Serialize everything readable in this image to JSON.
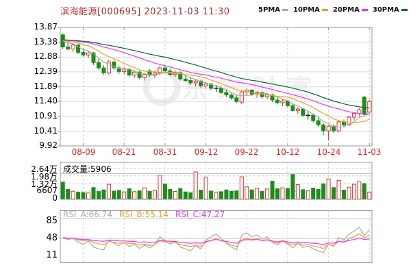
{
  "header": {
    "title": "滨海能源[000695] 2023-11-03 11:30",
    "legend": [
      {
        "label": "5PMA",
        "color": "#aaaaaa"
      },
      {
        "label": "10PMA",
        "color": "#f0a11a"
      },
      {
        "label": "20PMA",
        "color": "#f830f8"
      },
      {
        "label": "30PMA",
        "color": "#006a35"
      }
    ]
  },
  "main": {
    "y_labels": [
      "13.87",
      "13.38",
      "12.88",
      "12.39",
      "11.89",
      "11.40",
      "10.91",
      "10.41",
      "9.92"
    ]
  },
  "x_labels": [
    "08-09",
    "08-21",
    "08-31",
    "09-12",
    "09-22",
    "10-12",
    "10-24",
    "11-03"
  ],
  "volume": {
    "header": "成交量:5906",
    "y_labels": [
      "2.64万",
      "1.98万",
      "1.32万",
      "6607",
      "0"
    ]
  },
  "rsi": {
    "labels": [
      {
        "text": "RSI_A:66.74",
        "color": "#aaaaaa"
      },
      {
        "text": "RSI_B:55.14",
        "color": "#f0a11a"
      },
      {
        "text": "RSI_C:47.27",
        "color": "#f830f8"
      }
    ],
    "y_labels": [
      "85",
      "48",
      "11"
    ]
  },
  "watermark": {
    "text": "东方财富"
  },
  "chart_data": [
    {
      "type": "candlestick",
      "title": "滨海能源[000695] 2023-11-03 11:30",
      "ylim": [
        9.92,
        13.87
      ],
      "y_ticks": [
        13.87,
        13.38,
        12.88,
        12.39,
        11.89,
        11.4,
        10.91,
        10.41,
        9.92
      ],
      "x_tick_indices": [
        4,
        12,
        20,
        28,
        36,
        44,
        52,
        60
      ],
      "x_tick_labels": [
        "08-09",
        "08-21",
        "08-31",
        "09-12",
        "09-22",
        "10-12",
        "10-24",
        "11-03"
      ],
      "dates": [
        "08-03",
        "08-04",
        "08-07",
        "08-08",
        "08-09",
        "08-10",
        "08-11",
        "08-14",
        "08-15",
        "08-16",
        "08-17",
        "08-18",
        "08-21",
        "08-22",
        "08-23",
        "08-24",
        "08-25",
        "08-28",
        "08-29",
        "08-30",
        "08-31",
        "09-01",
        "09-04",
        "09-05",
        "09-06",
        "09-07",
        "09-08",
        "09-11",
        "09-12",
        "09-13",
        "09-14",
        "09-15",
        "09-18",
        "09-19",
        "09-20",
        "09-21",
        "09-22",
        "09-25",
        "09-26",
        "09-27",
        "09-28",
        "10-09",
        "10-10",
        "10-11",
        "10-12",
        "10-13",
        "10-16",
        "10-17",
        "10-18",
        "10-19",
        "10-20",
        "10-23",
        "10-24",
        "10-25",
        "10-26",
        "10-27",
        "10-30",
        "10-31",
        "11-01",
        "11-02",
        "11-03"
      ],
      "ohlc": [
        [
          13.62,
          13.68,
          13.15,
          13.22
        ],
        [
          13.22,
          13.4,
          13.1,
          13.15
        ],
        [
          13.15,
          13.35,
          13.05,
          13.28
        ],
        [
          13.28,
          13.32,
          12.98,
          13.04
        ],
        [
          13.04,
          13.18,
          12.9,
          12.95
        ],
        [
          12.95,
          13.1,
          12.85,
          13.02
        ],
        [
          13.02,
          13.06,
          12.62,
          12.7
        ],
        [
          12.7,
          12.82,
          12.45,
          12.52
        ],
        [
          12.52,
          12.62,
          12.28,
          12.35
        ],
        [
          12.35,
          12.8,
          12.3,
          12.72
        ],
        [
          12.72,
          12.78,
          12.45,
          12.52
        ],
        [
          12.52,
          12.6,
          12.32,
          12.4
        ],
        [
          12.4,
          12.55,
          12.3,
          12.48
        ],
        [
          12.48,
          12.52,
          12.22,
          12.28
        ],
        [
          12.28,
          12.45,
          12.18,
          12.38
        ],
        [
          12.38,
          12.42,
          12.15,
          12.2
        ],
        [
          12.2,
          12.35,
          12.1,
          12.3
        ],
        [
          12.42,
          12.48,
          12.22,
          12.28
        ],
        [
          12.28,
          12.4,
          12.18,
          12.35
        ],
        [
          12.35,
          12.58,
          12.28,
          12.52
        ],
        [
          12.52,
          12.62,
          12.35,
          12.42
        ],
        [
          12.42,
          12.5,
          12.25,
          12.3
        ],
        [
          12.3,
          12.42,
          12.2,
          12.36
        ],
        [
          12.36,
          12.4,
          12.1,
          12.15
        ],
        [
          12.15,
          12.28,
          12.05,
          12.1
        ],
        [
          12.1,
          12.22,
          11.95,
          12.02
        ],
        [
          12.02,
          12.15,
          11.9,
          12.08
        ],
        [
          12.08,
          12.12,
          11.85,
          11.92
        ],
        [
          11.92,
          12.05,
          11.82,
          11.98
        ],
        [
          11.98,
          12.02,
          11.78,
          11.84
        ],
        [
          11.84,
          11.95,
          11.72,
          11.84
        ],
        [
          11.84,
          11.9,
          11.65,
          11.7
        ],
        [
          11.7,
          11.8,
          11.55,
          11.62
        ],
        [
          11.62,
          11.72,
          11.45,
          11.52
        ],
        [
          11.52,
          11.6,
          11.35,
          11.4
        ],
        [
          11.38,
          11.78,
          11.32,
          11.72
        ],
        [
          11.72,
          11.85,
          11.6,
          11.78
        ],
        [
          11.78,
          11.82,
          11.58,
          11.65
        ],
        [
          11.65,
          11.75,
          11.52,
          11.7
        ],
        [
          11.7,
          11.74,
          11.5,
          11.56
        ],
        [
          11.56,
          11.68,
          11.48,
          11.62
        ],
        [
          11.62,
          11.65,
          11.38,
          11.45
        ],
        [
          11.45,
          11.55,
          11.3,
          11.36
        ],
        [
          11.36,
          11.48,
          11.25,
          11.42
        ],
        [
          11.42,
          11.45,
          11.2,
          11.26
        ],
        [
          11.26,
          11.35,
          11.05,
          11.1
        ],
        [
          11.1,
          11.22,
          10.98,
          11.15
        ],
        [
          11.15,
          11.18,
          10.88,
          10.94
        ],
        [
          10.94,
          11.05,
          10.8,
          10.94
        ],
        [
          10.94,
          11.0,
          10.7,
          10.76
        ],
        [
          10.76,
          10.88,
          10.55,
          10.62
        ],
        [
          10.62,
          10.68,
          10.28,
          10.42
        ],
        [
          10.42,
          10.62,
          10.1,
          10.58
        ],
        [
          10.58,
          10.64,
          10.35,
          10.42
        ],
        [
          10.42,
          10.78,
          10.38,
          10.72
        ],
        [
          10.72,
          10.8,
          10.55,
          10.62
        ],
        [
          10.62,
          10.92,
          10.58,
          10.88
        ],
        [
          10.88,
          11.05,
          10.78,
          11.0
        ],
        [
          11.0,
          11.18,
          10.9,
          11.12
        ],
        [
          11.55,
          11.58,
          10.92,
          10.98
        ],
        [
          11.05,
          11.45,
          11.0,
          11.4
        ]
      ],
      "ma_seed": [
        13.42,
        13.48,
        13.45,
        13.5,
        13.46,
        13.52,
        13.48,
        13.44,
        13.5,
        13.46,
        13.42,
        13.48,
        13.45,
        13.5,
        13.46,
        13.42,
        13.48,
        13.44,
        13.5,
        13.46,
        13.42,
        13.48,
        13.45,
        13.5,
        13.46,
        13.42,
        13.48,
        13.44,
        13.5,
        13.46
      ],
      "ma_periods": [
        5,
        10,
        20,
        30
      ],
      "colors": {
        "up": "#e02a2a",
        "down": "#1d8c1d",
        "doji": "#000000",
        "ma5": "#aaaaaa",
        "ma10": "#f0a11a",
        "ma20": "#f830f8",
        "ma30": "#006a35",
        "grid": "#dadada",
        "grid_dash": "#cfcfcf",
        "border": "#999999",
        "date_label": "#e62222"
      }
    },
    {
      "type": "bar",
      "name": "成交量",
      "current": 5906,
      "ylim": [
        0,
        26428
      ],
      "y_ticks": [
        26428,
        19821,
        13214,
        6607,
        0
      ],
      "values": [
        14500,
        8200,
        6600,
        5800,
        5600,
        5200,
        9800,
        6400,
        7800,
        12600,
        6800,
        7400,
        6000,
        8800,
        6200,
        7000,
        9600,
        6600,
        7200,
        20400,
        12800,
        8200,
        6400,
        9000,
        6000,
        5400,
        23200,
        7600,
        18800,
        6800,
        5600,
        6200,
        7800,
        6600,
        7000,
        19000,
        10400,
        7800,
        9200,
        6400,
        8600,
        15200,
        8800,
        9600,
        9000,
        21000,
        12400,
        8000,
        7000,
        9400,
        8200,
        13000,
        17200,
        9800,
        15800,
        7600,
        10200,
        12600,
        14800,
        13200,
        5906
      ]
    },
    {
      "type": "line",
      "name": "RSI",
      "ylim": [
        11,
        85
      ],
      "y_ticks": [
        85,
        48,
        11
      ],
      "series": [
        {
          "name": "RSI_A",
          "current": 66.74,
          "color": "#aaaaaa",
          "values": [
            50,
            46,
            49,
            40,
            36,
            43,
            30,
            26,
            24,
            45,
            38,
            33,
            40,
            31,
            36,
            27,
            34,
            28,
            35,
            52,
            44,
            36,
            42,
            30,
            26,
            22,
            32,
            26,
            45,
            52,
            58,
            48,
            38,
            30,
            24,
            55,
            60,
            52,
            56,
            47,
            52,
            40,
            34,
            44,
            36,
            28,
            38,
            29,
            32,
            26,
            22,
            18,
            36,
            31,
            50,
            45,
            58,
            64,
            72,
            55,
            66.74
          ]
        },
        {
          "name": "RSI_B",
          "current": 55.14,
          "color": "#f0a11a",
          "values": [
            50,
            48,
            49,
            45,
            43,
            45,
            40,
            37,
            35,
            42,
            40,
            38,
            40,
            37,
            38,
            34,
            36,
            33,
            35,
            43,
            41,
            38,
            40,
            35,
            33,
            31,
            34,
            31,
            40,
            44,
            48,
            44,
            39,
            34,
            31,
            45,
            49,
            46,
            48,
            44,
            46,
            41,
            38,
            42,
            38,
            34,
            38,
            34,
            35,
            32,
            30,
            27,
            36,
            33,
            42,
            40,
            48,
            52,
            58,
            50,
            55.14
          ]
        },
        {
          "name": "RSI_C",
          "current": 47.27,
          "color": "#f830f8",
          "values": [
            50,
            49,
            49,
            47,
            46,
            46,
            44,
            43,
            42,
            45,
            44,
            43,
            43,
            42,
            42,
            40,
            41,
            40,
            40,
            44,
            43,
            42,
            42,
            40,
            39,
            38,
            39,
            38,
            42,
            44,
            46,
            44,
            42,
            40,
            38,
            44,
            46,
            45,
            46,
            44,
            45,
            43,
            41,
            43,
            41,
            39,
            41,
            39,
            39,
            38,
            37,
            35,
            39,
            38,
            42,
            41,
            44,
            46,
            49,
            46,
            47.27
          ]
        }
      ]
    }
  ]
}
